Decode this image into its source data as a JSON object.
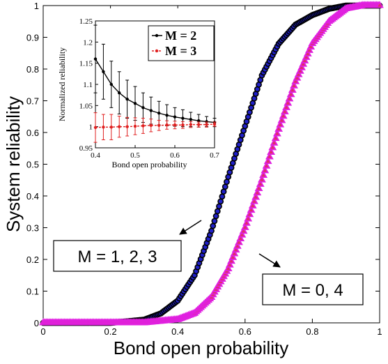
{
  "chart_data": [
    {
      "type": "scatter",
      "title": "",
      "xlabel": "Bond open probability",
      "ylabel": "System reliability",
      "xlim": [
        0,
        1
      ],
      "ylim": [
        0,
        1
      ],
      "xticks": [
        "0",
        "0.2",
        "0.4",
        "0.6",
        "0.8",
        "1"
      ],
      "yticks": [
        "0",
        "0.1",
        "0.2",
        "0.3",
        "0.4",
        "0.5",
        "0.6",
        "0.7",
        "0.8",
        "0.9",
        "1"
      ],
      "grid": false,
      "series": [
        {
          "color": "#1a1a1a",
          "x": [
            0.0,
            0.1,
            0.2,
            0.3,
            0.35,
            0.4,
            0.45,
            0.5,
            0.55,
            0.6,
            0.65,
            0.7,
            0.75,
            0.8,
            0.85,
            0.9,
            1.0
          ],
          "y": [
            0.0,
            0.0,
            0.0,
            0.01,
            0.03,
            0.07,
            0.15,
            0.29,
            0.46,
            0.62,
            0.78,
            0.88,
            0.94,
            0.97,
            0.99,
            1.0,
            1.0
          ]
        },
        {
          "color": "#e020e0",
          "x": [
            0.0,
            0.2,
            0.3,
            0.4,
            0.45,
            0.5,
            0.55,
            0.6,
            0.65,
            0.7,
            0.75,
            0.8,
            0.85,
            0.9,
            0.95,
            1.0
          ],
          "y": [
            0.0,
            0.0,
            0.0,
            0.01,
            0.03,
            0.08,
            0.17,
            0.3,
            0.45,
            0.61,
            0.76,
            0.88,
            0.95,
            0.99,
            1.0,
            1.0
          ]
        }
      ],
      "annotations": [
        {
          "text": "M = 1, 2, 3"
        },
        {
          "text": "M = 0, 4"
        }
      ]
    },
    {
      "type": "line",
      "title": "",
      "xlabel": "Bond open probability",
      "ylabel": "Normalized reliability",
      "xlim": [
        0.4,
        0.7
      ],
      "ylim": [
        0.95,
        1.25
      ],
      "xticks": [
        "0.4",
        "0.5",
        "0.6",
        "0.7"
      ],
      "yticks": [
        "0.95",
        "1",
        "1.05",
        "1.1",
        "1.15",
        "1.2",
        "1.25"
      ],
      "legend": "top-right",
      "series": [
        {
          "name": "M = 2",
          "color": "#000000",
          "x": [
            0.4,
            0.42,
            0.44,
            0.46,
            0.48,
            0.5,
            0.52,
            0.54,
            0.56,
            0.58,
            0.6,
            0.62,
            0.64,
            0.66,
            0.68,
            0.7
          ],
          "y": [
            1.16,
            1.13,
            1.1,
            1.08,
            1.065,
            1.055,
            1.045,
            1.038,
            1.032,
            1.027,
            1.023,
            1.02,
            1.017,
            1.014,
            1.012,
            1.01
          ],
          "err": [
            0.08,
            0.065,
            0.055,
            0.05,
            0.045,
            0.04,
            0.035,
            0.032,
            0.028,
            0.025,
            0.022,
            0.02,
            0.017,
            0.015,
            0.012,
            0.01
          ]
        },
        {
          "name": "M = 3",
          "color": "#e02020",
          "x": [
            0.4,
            0.42,
            0.44,
            0.46,
            0.48,
            0.5,
            0.52,
            0.54,
            0.56,
            0.58,
            0.6,
            0.62,
            0.64,
            0.66,
            0.68,
            0.7
          ],
          "y": [
            0.998,
            0.999,
            0.999,
            1.0,
            1.0,
            1.001,
            1.002,
            1.003,
            1.003,
            1.004,
            1.004,
            1.004,
            1.005,
            1.005,
            1.005,
            1.006
          ],
          "err": [
            0.035,
            0.03,
            0.03,
            0.025,
            0.022,
            0.02,
            0.018,
            0.015,
            0.012,
            0.01,
            0.009,
            0.008,
            0.007,
            0.006,
            0.006,
            0.005
          ]
        }
      ]
    }
  ]
}
